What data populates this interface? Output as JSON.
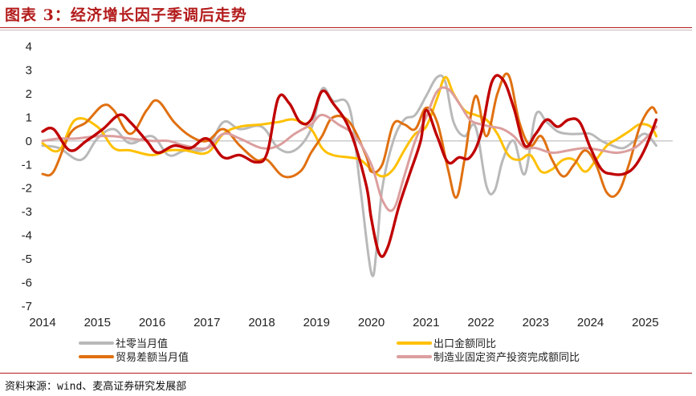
{
  "header": {
    "title": "图表 3：经济增长因子季调后走势"
  },
  "footer": {
    "source": "资料来源：wind、麦高证券研究发展部"
  },
  "chart_data": {
    "type": "line",
    "title": "图表 3：经济增长因子季调后走势",
    "xlabel": "",
    "ylabel": "",
    "ylim": [
      -7,
      4
    ],
    "xlim": [
      2014,
      2025.5
    ],
    "yticks": [
      4,
      3,
      2,
      1,
      0,
      -1,
      -2,
      -3,
      -4,
      -5,
      -6,
      -7
    ],
    "xticks": [
      "2014",
      "2015",
      "2016",
      "2017",
      "2018",
      "2019",
      "2020",
      "2021",
      "2022",
      "2023",
      "2024",
      "2025"
    ],
    "series": [
      {
        "name": "社零当月值",
        "color": "#b9b9b9",
        "x": [
          2014.0,
          2014.3,
          2014.7,
          2015.0,
          2015.3,
          2015.6,
          2016.0,
          2016.3,
          2016.6,
          2017.0,
          2017.3,
          2017.6,
          2018.0,
          2018.3,
          2018.6,
          2018.9,
          2019.1,
          2019.3,
          2019.6,
          2019.8,
          2020.0,
          2020.1,
          2020.2,
          2020.4,
          2020.6,
          2020.8,
          2021.0,
          2021.2,
          2021.35,
          2021.5,
          2021.7,
          2021.9,
          2022.1,
          2022.25,
          2022.4,
          2022.6,
          2022.8,
          2023.0,
          2023.2,
          2023.4,
          2023.6,
          2023.8,
          2024.0,
          2024.2,
          2024.4,
          2024.6,
          2024.8,
          2025.0,
          2025.2
        ],
        "y": [
          -0.2,
          -0.3,
          -0.8,
          0.1,
          0.5,
          -0.1,
          0.2,
          -0.6,
          -0.4,
          -0.3,
          0.8,
          0.5,
          0.6,
          -0.3,
          -0.4,
          0.5,
          2.2,
          1.7,
          1.4,
          -2.0,
          -5.6,
          -4.5,
          -2.0,
          0.0,
          0.9,
          1.1,
          1.9,
          2.7,
          2.5,
          0.8,
          0.2,
          0.6,
          -1.9,
          -2.1,
          -0.8,
          0.0,
          -1.4,
          1.1,
          0.8,
          0.4,
          0.3,
          0.3,
          0.3,
          0.0,
          -0.2,
          -0.3,
          0.0,
          0.3,
          -0.2
        ]
      },
      {
        "name": "出口金额同比",
        "color": "#ffc000",
        "x": [
          2014.0,
          2014.3,
          2014.6,
          2015.0,
          2015.3,
          2015.6,
          2016.0,
          2016.3,
          2016.6,
          2017.0,
          2017.3,
          2017.6,
          2018.0,
          2018.3,
          2018.6,
          2018.9,
          2019.1,
          2019.3,
          2019.6,
          2019.8,
          2020.0,
          2020.2,
          2020.4,
          2020.6,
          2020.8,
          2021.0,
          2021.2,
          2021.35,
          2021.5,
          2021.7,
          2021.9,
          2022.1,
          2022.3,
          2022.5,
          2022.7,
          2022.9,
          2023.1,
          2023.3,
          2023.5,
          2023.7,
          2023.9,
          2024.1,
          2024.3,
          2024.5,
          2024.7,
          2024.9,
          2025.1,
          2025.2
        ],
        "y": [
          -0.1,
          -0.4,
          0.9,
          0.6,
          -0.3,
          -0.4,
          -0.6,
          -0.4,
          -0.4,
          -0.5,
          0.3,
          0.6,
          0.7,
          0.8,
          0.9,
          0.5,
          -0.3,
          -0.6,
          -0.7,
          -0.8,
          -1.2,
          -1.5,
          -1.2,
          -0.4,
          0.3,
          0.6,
          1.8,
          2.7,
          2.0,
          1.3,
          1.1,
          0.9,
          0.3,
          -0.6,
          -0.8,
          -0.6,
          -1.3,
          -1.2,
          -0.8,
          -0.8,
          -1.3,
          -0.8,
          -0.2,
          0.1,
          0.4,
          0.7,
          0.6,
          0.2
        ]
      },
      {
        "name": "贸易差额当月值",
        "color": "#e07010",
        "x": [
          2014.0,
          2014.2,
          2014.5,
          2014.8,
          2015.1,
          2015.3,
          2015.6,
          2015.9,
          2016.1,
          2016.4,
          2016.7,
          2017.0,
          2017.3,
          2017.6,
          2017.9,
          2018.1,
          2018.4,
          2018.7,
          2018.9,
          2019.1,
          2019.3,
          2019.6,
          2019.9,
          2020.0,
          2020.2,
          2020.4,
          2020.6,
          2020.8,
          2021.0,
          2021.2,
          2021.4,
          2021.55,
          2021.7,
          2021.9,
          2022.1,
          2022.3,
          2022.5,
          2022.7,
          2022.9,
          2023.1,
          2023.3,
          2023.5,
          2023.7,
          2023.9,
          2024.1,
          2024.3,
          2024.5,
          2024.7,
          2024.9,
          2025.1,
          2025.2
        ],
        "y": [
          -1.4,
          -1.3,
          0.3,
          0.8,
          1.5,
          1.3,
          0.3,
          1.3,
          1.7,
          0.8,
          0.2,
          0.0,
          0.5,
          -0.2,
          -0.8,
          -0.8,
          -1.5,
          -1.3,
          -0.5,
          0.2,
          1.0,
          0.8,
          -0.6,
          -1.3,
          -1.0,
          0.7,
          0.7,
          0.5,
          1.4,
          0.8,
          -1.2,
          -2.4,
          -0.8,
          1.9,
          0.2,
          2.0,
          2.8,
          0.8,
          -0.2,
          0.2,
          -0.8,
          -1.5,
          -1.0,
          -0.4,
          -1.0,
          -2.2,
          -2.2,
          -1.0,
          0.6,
          1.4,
          1.2
        ]
      },
      {
        "name": "制造业固定资产投资完成额同比",
        "color": "#dc9e9e",
        "x": [
          2014.0,
          2014.3,
          2014.6,
          2015.0,
          2015.3,
          2015.6,
          2016.0,
          2016.3,
          2016.6,
          2017.0,
          2017.3,
          2017.6,
          2018.0,
          2018.3,
          2018.6,
          2018.9,
          2019.1,
          2019.4,
          2019.7,
          2020.0,
          2020.2,
          2020.4,
          2020.6,
          2020.8,
          2021.0,
          2021.2,
          2021.4,
          2021.6,
          2021.8,
          2022.0,
          2022.2,
          2022.4,
          2022.6,
          2022.8,
          2023.0,
          2023.3,
          2023.6,
          2023.9,
          2024.2,
          2024.5,
          2024.8,
          2025.0,
          2025.2
        ],
        "y": [
          0.0,
          0.1,
          0.1,
          0.2,
          0.2,
          0.1,
          0.0,
          0.0,
          -0.2,
          -0.3,
          0.3,
          0.1,
          -0.3,
          -0.2,
          0.3,
          0.7,
          1.1,
          0.7,
          0.2,
          -1.0,
          -2.5,
          -2.9,
          -1.5,
          0.0,
          1.0,
          2.1,
          2.2,
          1.6,
          0.9,
          0.7,
          0.6,
          0.5,
          0.2,
          -0.3,
          -0.3,
          -0.5,
          -0.4,
          -0.3,
          -0.4,
          -0.5,
          -0.3,
          0.1,
          0.6
        ]
      },
      {
        "name": "经济增长因子",
        "color": "#c00000",
        "x": [
          2014.0,
          2014.2,
          2014.5,
          2014.8,
          2015.1,
          2015.4,
          2015.6,
          2015.9,
          2016.1,
          2016.4,
          2016.7,
          2017.0,
          2017.3,
          2017.6,
          2017.9,
          2018.1,
          2018.3,
          2018.5,
          2018.7,
          2018.9,
          2019.1,
          2019.3,
          2019.6,
          2019.9,
          2020.0,
          2020.15,
          2020.3,
          2020.5,
          2020.7,
          2020.9,
          2021.0,
          2021.2,
          2021.4,
          2021.6,
          2021.8,
          2022.0,
          2022.2,
          2022.4,
          2022.6,
          2022.8,
          2023.0,
          2023.2,
          2023.4,
          2023.6,
          2023.8,
          2024.0,
          2024.2,
          2024.4,
          2024.6,
          2024.8,
          2025.0,
          2025.2
        ],
        "y": [
          0.4,
          0.5,
          -0.4,
          0.0,
          0.5,
          1.1,
          0.8,
          0.0,
          -0.5,
          -0.2,
          -0.3,
          0.1,
          -0.7,
          -0.6,
          -0.9,
          -0.5,
          1.8,
          1.6,
          0.8,
          0.9,
          2.1,
          1.6,
          0.5,
          -1.8,
          -3.3,
          -4.8,
          -4.5,
          -2.8,
          -1.4,
          0.0,
          1.3,
          0.2,
          -0.9,
          -0.7,
          -0.7,
          0.3,
          2.5,
          2.6,
          1.4,
          -0.2,
          0.3,
          0.9,
          0.6,
          0.9,
          0.8,
          -0.3,
          -1.2,
          -1.4,
          -1.4,
          -1.1,
          -0.3,
          0.9
        ]
      }
    ],
    "legend": [
      {
        "label": "社零当月值",
        "color": "#b9b9b9"
      },
      {
        "label": "出口金额同比",
        "color": "#ffc000"
      },
      {
        "label": "贸易差额当月值",
        "color": "#e07010"
      },
      {
        "label": "制造业固定资产投资完成额同比",
        "color": "#dc9e9e"
      }
    ]
  }
}
